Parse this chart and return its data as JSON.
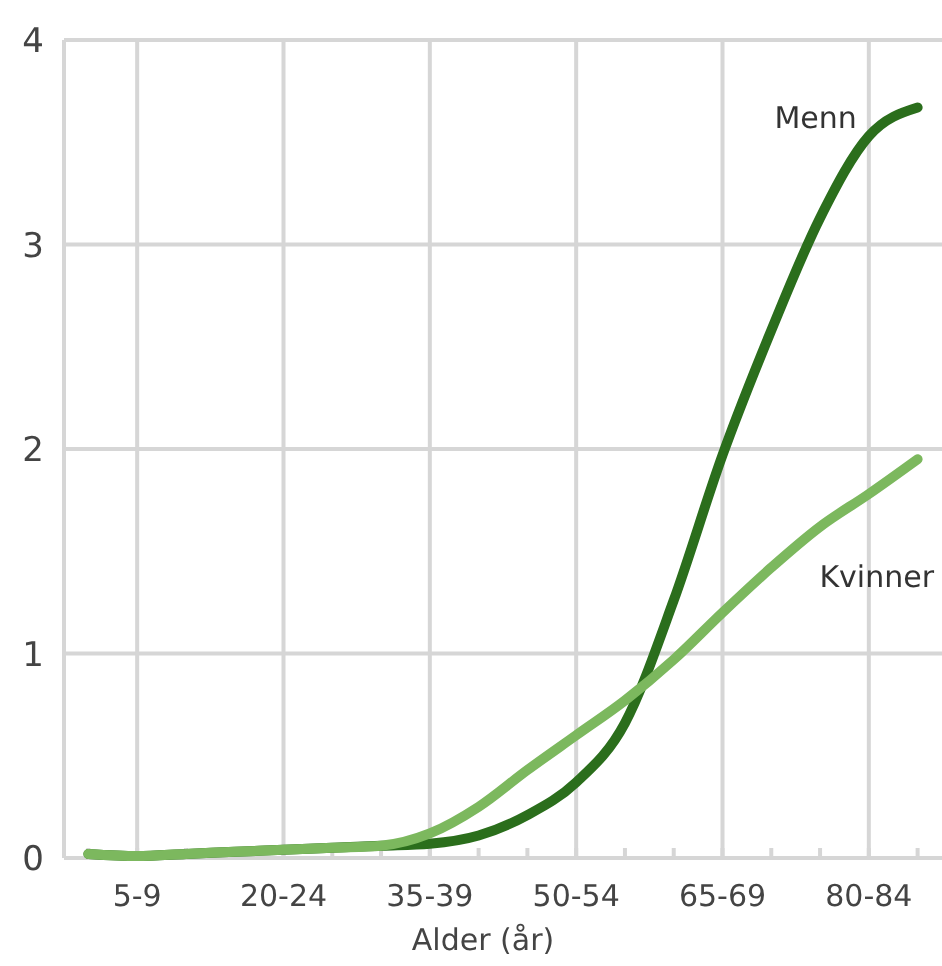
{
  "chart_data": {
    "type": "line",
    "xlabel": "Alder (år)",
    "categories": [
      null,
      "5-9",
      null,
      null,
      "20-24",
      null,
      null,
      "35-39",
      null,
      null,
      "50-54",
      null,
      null,
      "65-69",
      null,
      null,
      "80-84",
      null
    ],
    "series": [
      {
        "name": "Menn",
        "color": "#2b6e1c",
        "values": [
          0.02,
          0.01,
          0.02,
          0.03,
          0.04,
          0.05,
          0.06,
          0.07,
          0.11,
          0.21,
          0.37,
          0.66,
          1.26,
          1.97,
          2.58,
          3.13,
          3.53,
          3.67
        ]
      },
      {
        "name": "Kvinner",
        "color": "#7cb85e",
        "values": [
          0.02,
          0.01,
          0.02,
          0.03,
          0.04,
          0.05,
          0.06,
          0.12,
          0.25,
          0.43,
          0.6,
          0.77,
          0.97,
          1.2,
          1.42,
          1.62,
          1.78,
          1.95
        ]
      }
    ],
    "ylim": [
      0,
      4
    ],
    "yticks": [
      0,
      1,
      2,
      3,
      4
    ],
    "grid": true,
    "legend": false,
    "marker": "none",
    "line_style": "solid"
  }
}
